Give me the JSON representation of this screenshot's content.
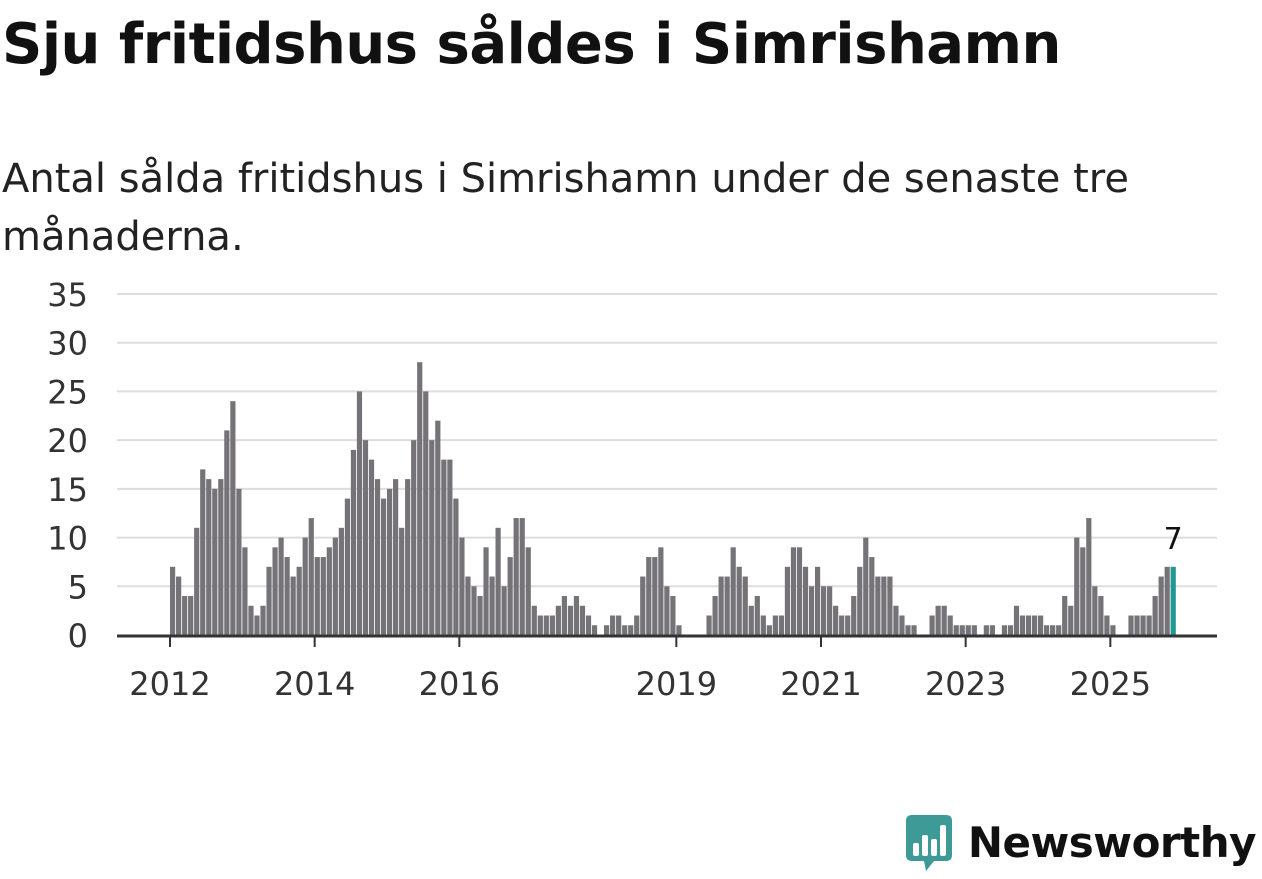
{
  "header": {
    "title": "Sju fritidshus såldes i Simrishamn",
    "subtitle": "Antal sålda fritidshus i Simrishamn under de senaste tre månaderna."
  },
  "brand": {
    "name": "Newsworthy",
    "logo_icon": "newsworthy-logo-icon",
    "color": "#3d9a96"
  },
  "colors": {
    "bar": "#757378",
    "highlight": "#229892",
    "grid": "#dddddd",
    "axis": "#333333",
    "text": "#333333"
  },
  "chart_data": {
    "type": "bar",
    "title": "Sju fritidshus såldes i Simrishamn",
    "subtitle": "Antal sålda fritidshus i Simrishamn under de senaste tre månaderna.",
    "xlabel": "",
    "ylabel": "",
    "ylim": [
      0,
      35
    ],
    "yticks": [
      0,
      5,
      10,
      15,
      20,
      25,
      30,
      35
    ],
    "grid": true,
    "xlim_months": [
      0,
      183
    ],
    "start": "2012-01",
    "x_tick_labels": [
      {
        "label": "2012",
        "month_index": 0
      },
      {
        "label": "2014",
        "month_index": 24
      },
      {
        "label": "2016",
        "month_index": 48
      },
      {
        "label": "2019",
        "month_index": 84
      },
      {
        "label": "2021",
        "month_index": 108
      },
      {
        "label": "2023",
        "month_index": 132
      },
      {
        "label": "2025",
        "month_index": 156
      }
    ],
    "values": [
      7,
      6,
      4,
      4,
      11,
      17,
      16,
      15,
      16,
      21,
      24,
      15,
      9,
      3,
      2,
      3,
      7,
      9,
      10,
      8,
      6,
      7,
      10,
      12,
      8,
      8,
      9,
      10,
      11,
      14,
      19,
      25,
      20,
      18,
      16,
      14,
      15,
      16,
      11,
      16,
      20,
      28,
      25,
      20,
      22,
      18,
      18,
      14,
      10,
      6,
      5,
      4,
      9,
      6,
      11,
      5,
      8,
      12,
      12,
      9,
      3,
      2,
      2,
      2,
      3,
      4,
      3,
      4,
      3,
      2,
      1,
      0,
      1,
      2,
      2,
      1,
      1,
      2,
      6,
      8,
      8,
      9,
      5,
      4,
      1,
      0,
      0,
      0,
      0,
      2,
      4,
      6,
      6,
      9,
      7,
      6,
      3,
      4,
      2,
      1,
      2,
      2,
      7,
      9,
      9,
      7,
      5,
      7,
      5,
      5,
      3,
      2,
      2,
      4,
      7,
      10,
      8,
      6,
      6,
      6,
      3,
      2,
      1,
      1,
      0,
      0,
      2,
      3,
      3,
      2,
      1,
      1,
      1,
      1,
      0,
      1,
      1,
      0,
      1,
      1,
      3,
      2,
      2,
      2,
      2,
      1,
      1,
      1,
      4,
      3,
      10,
      9,
      12,
      5,
      4,
      2,
      1,
      0,
      0,
      2,
      2,
      2,
      2,
      4,
      6,
      7,
      7
    ],
    "highlight_index": 166,
    "annotation": {
      "label": "7",
      "index": 166
    }
  }
}
